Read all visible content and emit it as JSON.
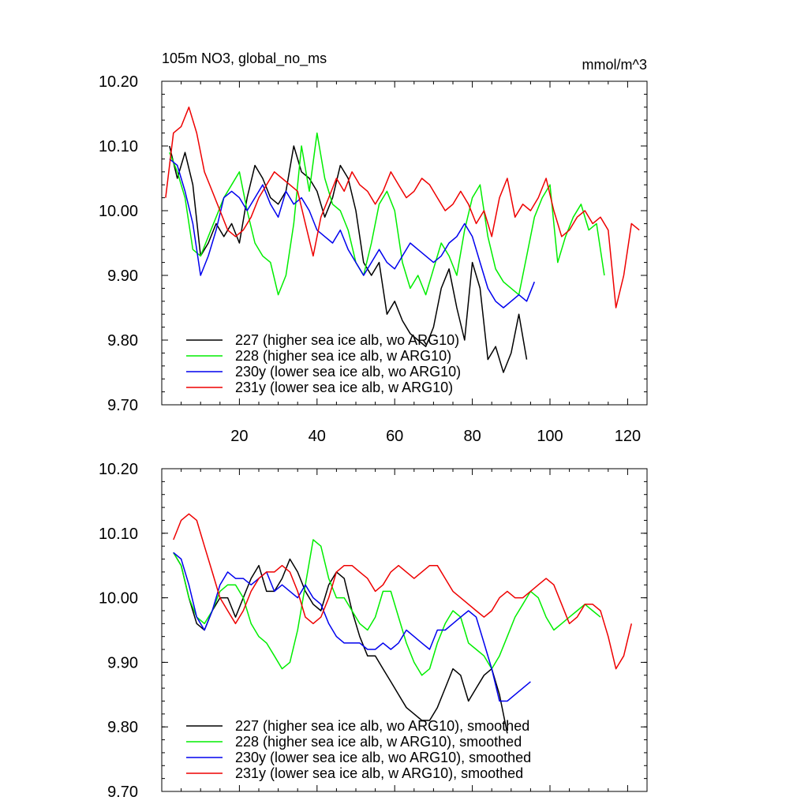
{
  "chart_data": [
    {
      "type": "line",
      "title": "105m NO3, global_no_ms",
      "units": "mmol/m^3",
      "xlim": [
        0,
        125
      ],
      "ylim": [
        9.7,
        10.2
      ],
      "yticks": [
        "9.70",
        "9.80",
        "9.90",
        "10.00",
        "10.10",
        "10.20"
      ],
      "xticks": [
        "20",
        "40",
        "60",
        "80",
        "100",
        "120"
      ],
      "series": [
        {
          "name": "227 (higher sea ice alb, wo ARG10)",
          "color": "#000000",
          "x": [
            2,
            4,
            6,
            8,
            10,
            12,
            14,
            16,
            18,
            20,
            22,
            24,
            26,
            28,
            30,
            32,
            34,
            36,
            38,
            40,
            42,
            44,
            46,
            48,
            50,
            52,
            54,
            56,
            58,
            60,
            62,
            64,
            66,
            68,
            70,
            72,
            74,
            76,
            78,
            80,
            82,
            84,
            86,
            88,
            90,
            92,
            94
          ],
          "y": [
            10.1,
            10.05,
            10.09,
            10.04,
            9.93,
            9.95,
            9.98,
            9.96,
            9.98,
            9.95,
            10.02,
            10.07,
            10.05,
            10.02,
            10.01,
            10.03,
            10.1,
            10.06,
            10.05,
            10.03,
            9.99,
            10.02,
            10.07,
            10.05,
            10.0,
            9.92,
            9.9,
            9.92,
            9.84,
            9.86,
            9.83,
            9.81,
            9.8,
            9.79,
            9.82,
            9.88,
            9.91,
            9.85,
            9.8,
            9.92,
            9.88,
            9.77,
            9.79,
            9.75,
            9.78,
            9.84,
            9.77
          ]
        },
        {
          "name": "228 (higher sea ice alb, w ARG10)",
          "color": "#00ee00",
          "x": [
            2,
            4,
            6,
            8,
            10,
            12,
            14,
            16,
            18,
            20,
            22,
            24,
            26,
            28,
            30,
            32,
            34,
            36,
            38,
            40,
            42,
            44,
            46,
            48,
            50,
            52,
            54,
            56,
            58,
            60,
            62,
            64,
            66,
            68,
            70,
            72,
            74,
            76,
            78,
            80,
            82,
            84,
            86,
            88,
            90,
            92,
            94,
            96,
            98,
            100,
            102,
            104,
            106,
            108,
            110,
            112,
            114
          ],
          "y": [
            10.09,
            10.06,
            10.02,
            9.94,
            9.93,
            9.96,
            9.99,
            10.02,
            10.04,
            10.06,
            10.0,
            9.95,
            9.93,
            9.92,
            9.87,
            9.9,
            9.98,
            10.1,
            10.03,
            10.12,
            10.05,
            10.01,
            10.0,
            9.97,
            9.92,
            9.9,
            9.95,
            10.01,
            10.03,
            10.0,
            9.92,
            9.88,
            9.9,
            9.87,
            9.91,
            9.95,
            9.93,
            9.9,
            9.97,
            10.02,
            10.04,
            9.96,
            9.91,
            9.89,
            9.88,
            9.87,
            9.93,
            9.99,
            10.02,
            10.04,
            9.92,
            9.96,
            9.99,
            10.01,
            9.97,
            9.98,
            9.9
          ]
        },
        {
          "name": "230y (lower sea ice alb, wo ARG10)",
          "color": "#0000ee",
          "x": [
            2,
            4,
            6,
            8,
            10,
            12,
            14,
            16,
            18,
            20,
            22,
            24,
            26,
            28,
            30,
            32,
            34,
            36,
            38,
            40,
            42,
            44,
            46,
            48,
            50,
            52,
            54,
            56,
            58,
            60,
            62,
            64,
            66,
            68,
            70,
            72,
            74,
            76,
            78,
            80,
            82,
            84,
            86,
            88,
            90,
            92,
            94,
            96
          ],
          "y": [
            10.08,
            10.07,
            10.03,
            9.98,
            9.9,
            9.93,
            9.97,
            10.02,
            10.03,
            10.02,
            10.0,
            10.02,
            10.04,
            10.01,
            9.99,
            10.03,
            10.01,
            10.02,
            10.0,
            9.97,
            9.96,
            9.95,
            9.97,
            9.94,
            9.92,
            9.9,
            9.92,
            9.94,
            9.92,
            9.91,
            9.93,
            9.95,
            9.94,
            9.93,
            9.92,
            9.93,
            9.95,
            9.96,
            9.98,
            9.96,
            9.92,
            9.88,
            9.86,
            9.85,
            9.86,
            9.87,
            9.86,
            9.89
          ]
        },
        {
          "name": "231y (lower sea ice alb, w ARG10)",
          "color": "#ee0000",
          "x": [
            1,
            3,
            5,
            7,
            9,
            11,
            13,
            15,
            17,
            19,
            21,
            23,
            25,
            27,
            29,
            31,
            33,
            35,
            37,
            39,
            41,
            43,
            45,
            47,
            49,
            51,
            53,
            55,
            57,
            59,
            61,
            63,
            65,
            67,
            69,
            71,
            73,
            75,
            77,
            79,
            81,
            83,
            85,
            87,
            89,
            91,
            93,
            95,
            97,
            99,
            101,
            103,
            105,
            107,
            109,
            111,
            113,
            115,
            117,
            119,
            121,
            123
          ],
          "y": [
            10.02,
            10.12,
            10.13,
            10.16,
            10.12,
            10.06,
            10.03,
            10.0,
            9.97,
            9.96,
            9.97,
            9.99,
            10.02,
            10.04,
            10.06,
            10.05,
            10.04,
            10.03,
            9.98,
            9.93,
            9.99,
            10.02,
            10.05,
            10.03,
            10.06,
            10.04,
            10.03,
            10.01,
            10.03,
            10.06,
            10.04,
            10.02,
            10.03,
            10.05,
            10.04,
            10.02,
            10.0,
            10.01,
            10.03,
            10.01,
            9.98,
            10.0,
            9.96,
            10.02,
            10.05,
            9.99,
            10.01,
            10.0,
            10.02,
            10.05,
            10.0,
            9.96,
            9.97,
            9.99,
            10.0,
            9.98,
            9.99,
            9.97,
            9.85,
            9.9,
            9.98,
            9.97
          ]
        }
      ]
    },
    {
      "type": "line",
      "title": "",
      "xlim": [
        0,
        125
      ],
      "ylim": [
        9.7,
        10.2
      ],
      "yticks": [
        "9.70",
        "9.80",
        "9.90",
        "10.00",
        "10.10",
        "10.20"
      ],
      "series": [
        {
          "name": "227 (higher sea ice alb, wo ARG10), smoothed",
          "color": "#000000",
          "x": [
            3,
            5,
            7,
            9,
            11,
            13,
            15,
            17,
            19,
            21,
            23,
            25,
            27,
            29,
            31,
            33,
            35,
            37,
            39,
            41,
            43,
            45,
            47,
            49,
            51,
            53,
            55,
            57,
            59,
            61,
            63,
            65,
            67,
            69,
            71,
            73,
            75,
            77,
            79,
            81,
            83,
            85,
            87,
            89
          ],
          "y": [
            10.07,
            10.05,
            10.0,
            9.96,
            9.95,
            9.98,
            10.0,
            10.0,
            9.97,
            10.0,
            10.03,
            10.05,
            10.01,
            10.01,
            10.03,
            10.06,
            10.04,
            10.01,
            9.99,
            9.98,
            10.02,
            10.04,
            10.03,
            9.98,
            9.94,
            9.91,
            9.91,
            9.89,
            9.87,
            9.85,
            9.83,
            9.82,
            9.81,
            9.81,
            9.83,
            9.86,
            9.89,
            9.88,
            9.84,
            9.86,
            9.88,
            9.89,
            9.85,
            9.79
          ]
        },
        {
          "name": "228 (higher sea ice alb, w ARG10), smoothed",
          "color": "#00ee00",
          "x": [
            3,
            5,
            7,
            9,
            11,
            13,
            15,
            17,
            19,
            21,
            23,
            25,
            27,
            29,
            31,
            33,
            35,
            37,
            39,
            41,
            43,
            45,
            47,
            49,
            51,
            53,
            55,
            57,
            59,
            61,
            63,
            65,
            67,
            69,
            71,
            73,
            75,
            77,
            79,
            81,
            83,
            85,
            87,
            89,
            91,
            93,
            95,
            97,
            99,
            101,
            103,
            105,
            107,
            109,
            111,
            113
          ],
          "y": [
            10.07,
            10.05,
            10.0,
            9.97,
            9.96,
            9.98,
            10.01,
            10.02,
            10.02,
            10.0,
            9.96,
            9.94,
            9.93,
            9.91,
            9.89,
            9.9,
            9.95,
            10.02,
            10.09,
            10.08,
            10.03,
            10.0,
            10.0,
            9.98,
            9.96,
            9.95,
            9.97,
            10.01,
            10.01,
            9.97,
            9.93,
            9.9,
            9.88,
            9.89,
            9.93,
            9.96,
            9.98,
            9.97,
            9.93,
            9.92,
            9.91,
            9.89,
            9.91,
            9.94,
            9.97,
            9.99,
            10.01,
            10.0,
            9.97,
            9.95,
            9.96,
            9.97,
            9.98,
            9.99,
            9.98,
            9.97
          ]
        },
        {
          "name": "230y (lower sea ice alb, wo ARG10), smoothed",
          "color": "#0000ee",
          "x": [
            3,
            5,
            7,
            9,
            11,
            13,
            15,
            17,
            19,
            21,
            23,
            25,
            27,
            29,
            31,
            33,
            35,
            37,
            39,
            41,
            43,
            45,
            47,
            49,
            51,
            53,
            55,
            57,
            59,
            61,
            63,
            65,
            67,
            69,
            71,
            73,
            75,
            77,
            79,
            81,
            83,
            85,
            87,
            89,
            91,
            93,
            95
          ],
          "y": [
            10.07,
            10.06,
            10.02,
            9.97,
            9.95,
            9.98,
            10.02,
            10.04,
            10.03,
            10.03,
            10.02,
            10.03,
            10.04,
            10.01,
            10.02,
            10.01,
            10.0,
            10.02,
            10.0,
            9.99,
            9.96,
            9.94,
            9.93,
            9.93,
            9.93,
            9.92,
            9.92,
            9.93,
            9.92,
            9.93,
            9.95,
            9.94,
            9.93,
            9.92,
            9.95,
            9.95,
            9.96,
            9.97,
            9.98,
            9.97,
            9.93,
            9.89,
            9.84,
            9.84,
            9.85,
            9.86,
            9.87
          ]
        },
        {
          "name": "231y (lower sea ice alb, w ARG10), smoothed",
          "color": "#ee0000",
          "x": [
            3,
            5,
            7,
            9,
            11,
            13,
            15,
            17,
            19,
            21,
            23,
            25,
            27,
            29,
            31,
            33,
            35,
            37,
            39,
            41,
            43,
            45,
            47,
            49,
            51,
            53,
            55,
            57,
            59,
            61,
            63,
            65,
            67,
            69,
            71,
            73,
            75,
            77,
            79,
            81,
            83,
            85,
            87,
            89,
            91,
            93,
            95,
            97,
            99,
            101,
            103,
            105,
            107,
            109,
            111,
            113,
            115,
            117,
            119,
            121
          ],
          "y": [
            10.09,
            10.12,
            10.13,
            10.12,
            10.08,
            10.04,
            10.0,
            9.98,
            9.96,
            9.98,
            10.01,
            10.03,
            10.04,
            10.04,
            10.05,
            10.04,
            10.01,
            9.97,
            9.96,
            9.97,
            10.0,
            10.04,
            10.05,
            10.05,
            10.04,
            10.03,
            10.01,
            10.02,
            10.04,
            10.05,
            10.04,
            10.03,
            10.04,
            10.05,
            10.05,
            10.03,
            10.01,
            10.0,
            9.99,
            9.98,
            9.97,
            9.98,
            10.0,
            10.01,
            10.0,
            10.0,
            10.01,
            10.02,
            10.03,
            10.02,
            9.99,
            9.96,
            9.97,
            9.99,
            9.99,
            9.98,
            9.94,
            9.89,
            9.91,
            9.96
          ]
        }
      ]
    }
  ]
}
